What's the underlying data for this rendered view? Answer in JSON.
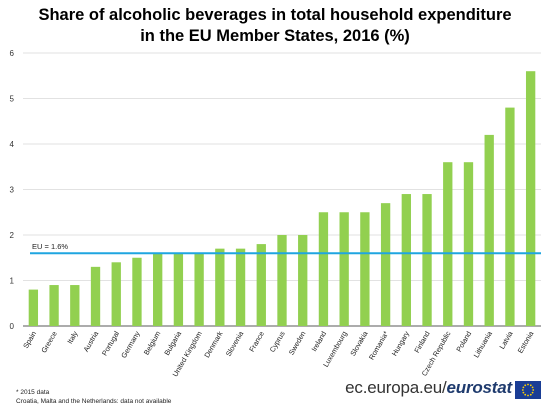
{
  "header": {
    "title_line1": "Share of alcoholic beverages in total household expenditure",
    "title_line2": "in the EU Member States, 2016 (%)"
  },
  "colors": {
    "bar": "#92D050",
    "eu_line": "#1FA5E0",
    "grid": "#D9D9D9",
    "axis": "#595959"
  },
  "chart_data": {
    "type": "bar",
    "categories": [
      "Spain",
      "Greece",
      "Italy",
      "Austria",
      "Portugal",
      "Germany",
      "Belgium",
      "Bulgaria",
      "United Kingdom",
      "Denmark",
      "Slovenia",
      "France",
      "Cyprus",
      "Sweden",
      "Ireland",
      "Luxembourg",
      "Slovakia",
      "Romania*",
      "Hungary",
      "Finland",
      "Czech Republic",
      "Poland",
      "Lithuania",
      "Latvia",
      "Estonia"
    ],
    "values": [
      0.8,
      0.9,
      0.9,
      1.3,
      1.4,
      1.5,
      1.6,
      1.6,
      1.6,
      1.7,
      1.7,
      1.8,
      2.0,
      2.0,
      2.5,
      2.5,
      2.5,
      2.7,
      2.9,
      2.9,
      3.6,
      3.6,
      4.2,
      4.8,
      5.6
    ],
    "ylim": [
      0,
      6
    ],
    "yticks": [
      "0",
      "1",
      "2",
      "3",
      "4",
      "5",
      "6"
    ],
    "grid": "horizontal",
    "reference_line": {
      "label": "EU = 1.6%",
      "value": 1.6
    }
  },
  "footnotes": {
    "line1": "* 2015 data",
    "line2": "Croatia, Malta and the Netherlands:  data not available"
  },
  "branding": {
    "site": "ec.europa.eu/",
    "name": "eurostat"
  }
}
